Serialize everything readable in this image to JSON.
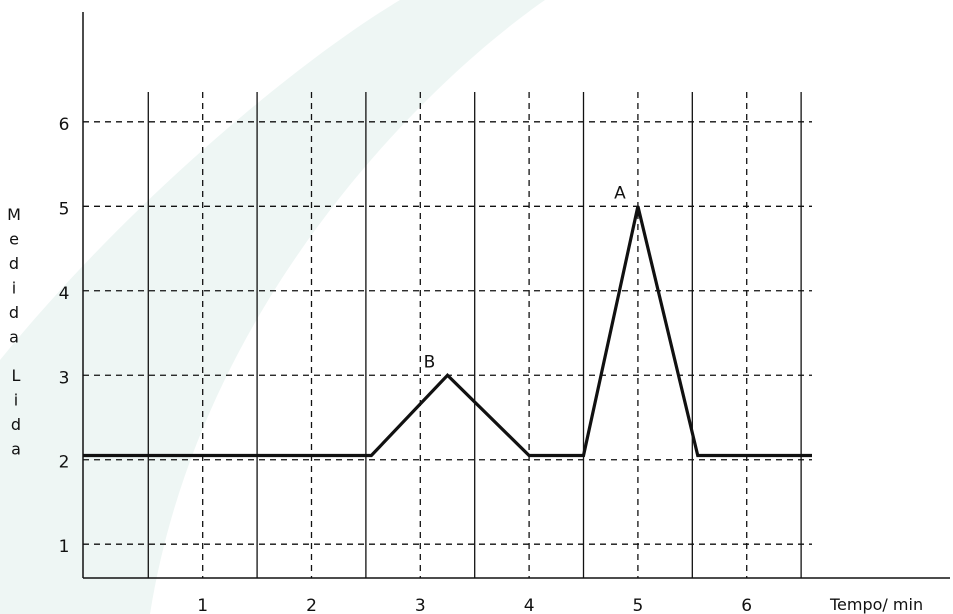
{
  "chart_data": {
    "type": "line",
    "xlabel": "Tempo/ min",
    "ylabel": "Medida Lida",
    "ylabel_lines": [
      "Medida",
      "Lida"
    ],
    "x_ticks": [
      1,
      2,
      3,
      4,
      5,
      6
    ],
    "y_ticks": [
      1,
      2,
      3,
      4,
      5,
      6
    ],
    "xlim": [
      -0.1,
      6.6
    ],
    "ylim": [
      0.6,
      7.3
    ],
    "grid": true,
    "vertical_solid_gridlines": [
      0.5,
      1.5,
      2.5,
      3.5,
      4.5,
      5.5,
      6.5
    ],
    "series": [
      {
        "x": [
          -0.1,
          2.55,
          3.25,
          4.0,
          4.5,
          5.0,
          5.55,
          6.6
        ],
        "y": [
          2.05,
          2.05,
          3.0,
          2.05,
          2.05,
          5.0,
          2.05,
          2.05
        ]
      }
    ],
    "annotations": [
      {
        "label": "A",
        "x": 5.0,
        "y": 5.0
      },
      {
        "label": "B",
        "x": 3.25,
        "y": 3.0
      }
    ],
    "colors": {
      "line": "#111111",
      "grid": "#111111",
      "background_band": "#eef6f4"
    }
  }
}
